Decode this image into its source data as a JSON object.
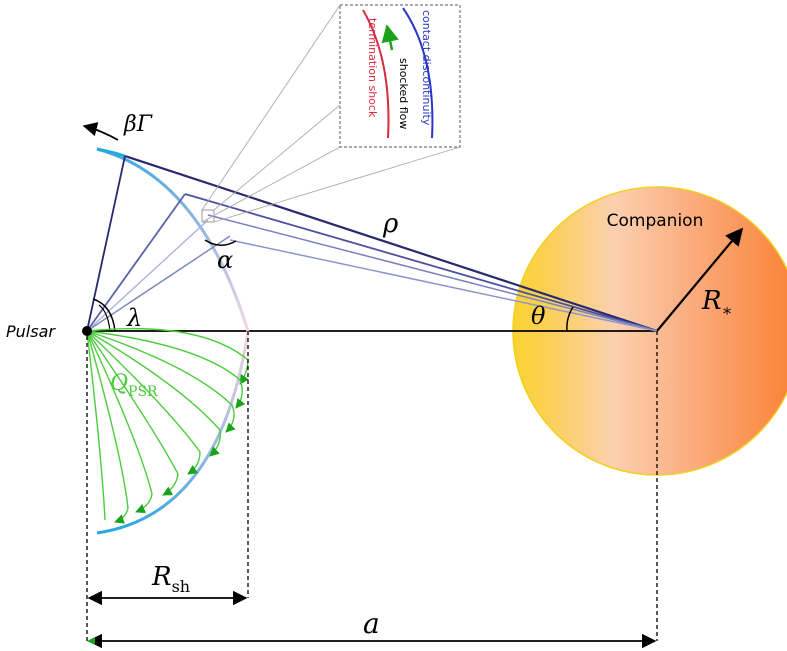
{
  "labels": {
    "pulsar": "Pulsar",
    "companion": "Companion",
    "beta_gamma": "βΓ",
    "rho": "ρ",
    "alpha": "α",
    "lambda": "λ",
    "theta": "θ",
    "r_star_main": "R",
    "r_star_sub": "∗",
    "q_psr_main": "Q",
    "q_psr_sub": "PSR",
    "r_sh_main": "R",
    "r_sh_sub": "sh",
    "a": "a"
  },
  "inset": {
    "termination_shock": "termination shock",
    "shocked_flow": "shocked flow",
    "contact_discontinuity": "contact discontinuity"
  },
  "colors": {
    "termination_shock": "#d62b3c",
    "contact_discontinuity": "#2a36c8",
    "shocked_flow_arrow": "#1aa31a",
    "pulsar_wind": "#4ccc3c",
    "shock_arc": "#29a8e0",
    "sight_lines": "#2a2a6e",
    "companion_gradient": [
      "#fbd54a",
      "#fcc8a8",
      "#f98a3a"
    ]
  }
}
